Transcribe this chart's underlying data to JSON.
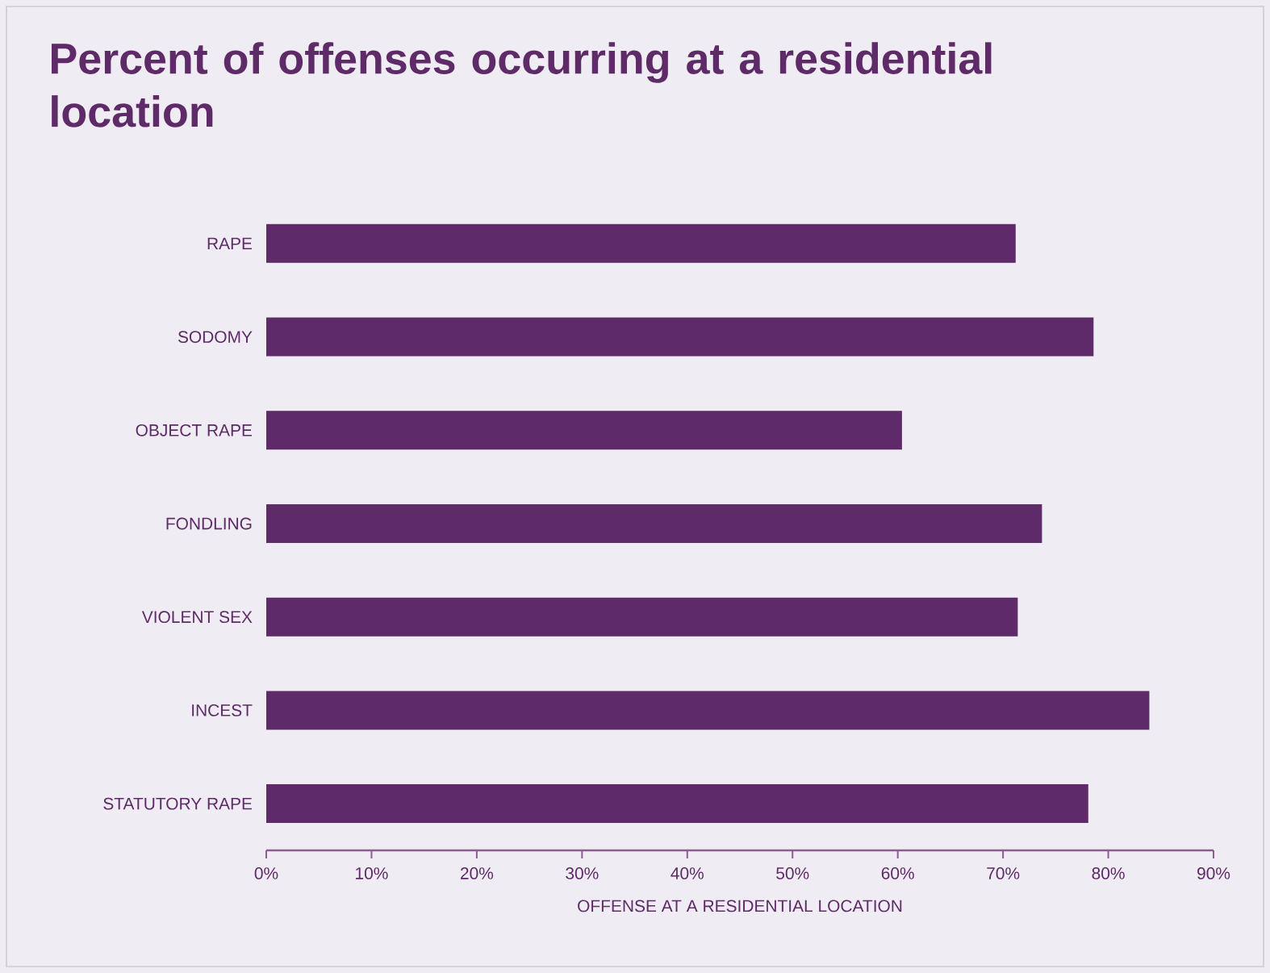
{
  "chart_data": {
    "type": "bar",
    "orientation": "horizontal",
    "title": "Percent of offenses occurring at a residential location",
    "xlabel": "OFFENSE AT A RESIDENTIAL LOCATION",
    "categories": [
      "RAPE",
      "SODOMY",
      "OBJECT RAPE",
      "FONDLING",
      "VIOLENT SEX",
      "INCEST",
      "STATUTORY RAPE"
    ],
    "values": [
      71.2,
      78.6,
      60.4,
      73.7,
      71.4,
      83.9,
      78.1
    ],
    "color": "#5e2a67",
    "xlim": [
      0,
      90
    ],
    "xticks": [
      {
        "value": 0,
        "label": "0%"
      },
      {
        "value": 10,
        "label": "10%"
      },
      {
        "value": 20,
        "label": "20%"
      },
      {
        "value": 30,
        "label": "30%"
      },
      {
        "value": 40,
        "label": "40%"
      },
      {
        "value": 50,
        "label": "50%"
      },
      {
        "value": 60,
        "label": "60%"
      },
      {
        "value": 70,
        "label": "70%"
      },
      {
        "value": 80,
        "label": "80%"
      },
      {
        "value": 90,
        "label": "90%"
      }
    ]
  }
}
